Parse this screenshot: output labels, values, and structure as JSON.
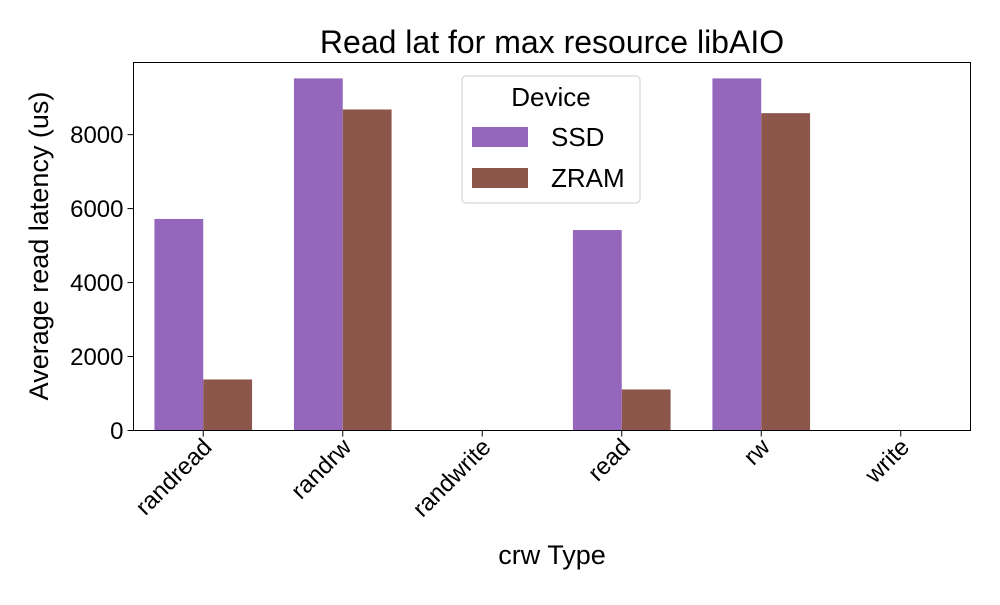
{
  "chart_data": {
    "type": "bar",
    "title": "Read lat for max resource libAIO",
    "xlabel": "crw Type",
    "ylabel": "Average read latency (us)",
    "categories": [
      "randread",
      "randrw",
      "randwrite",
      "read",
      "rw",
      "write"
    ],
    "series": [
      {
        "name": "SSD",
        "color": "#9467bd",
        "values": [
          5720,
          9520,
          0,
          5420,
          9520,
          0
        ]
      },
      {
        "name": "ZRAM",
        "color": "#8c564b",
        "values": [
          1380,
          8680,
          0,
          1110,
          8580,
          0
        ]
      }
    ],
    "ylim": [
      0,
      9950
    ],
    "yticks": [
      0,
      2000,
      4000,
      6000,
      8000
    ],
    "yticklabels": [
      "0",
      "2000",
      "4000",
      "6000",
      "8000"
    ],
    "legend": {
      "title": "Device",
      "position": "top-center"
    },
    "grid": false
  }
}
